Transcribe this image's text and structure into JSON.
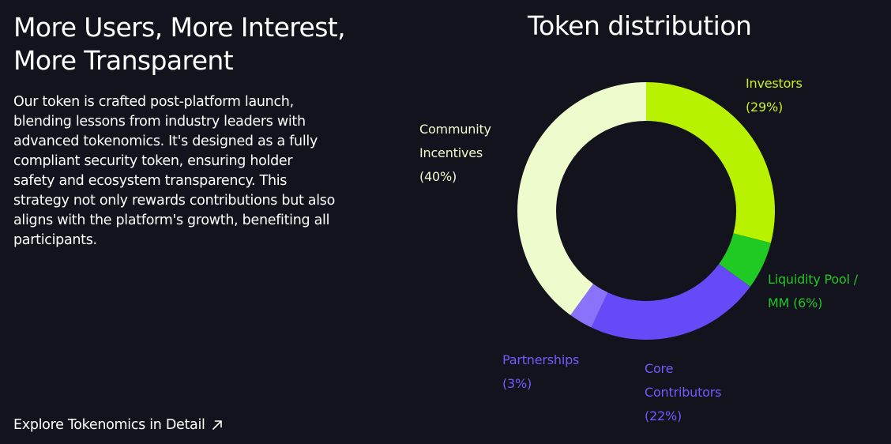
{
  "headline": {
    "line1": "More Users, More Interest,",
    "line2": "More Transparent"
  },
  "description": {
    "lines": [
      "Our token is crafted post-platform launch,",
      "blending lessons from industry leaders with",
      "advanced tokenomics. It's designed as a fully",
      "compliant security token, ensuring holder",
      "safety and ecosystem transparency. This",
      "strategy not only rewards contributions but also",
      "aligns with the platform's growth, benefiting all",
      "participants."
    ]
  },
  "explore_link": {
    "label": "Explore Tokenomics in Detail",
    "icon": "arrow-up-right-icon"
  },
  "chart_data": {
    "type": "pie",
    "title": "Token distribution",
    "donut": true,
    "slices": [
      {
        "key": "investors",
        "label_lines": [
          "Investors",
          "(29%)"
        ],
        "value": 29,
        "color": "#b9f200"
      },
      {
        "key": "liquidity",
        "label_lines": [
          "Liquidity Pool /",
          "MM (6%)"
        ],
        "value": 6,
        "color": "#1fcb22"
      },
      {
        "key": "core",
        "label_lines": [
          "Core",
          "Contributors",
          "(22%)"
        ],
        "value": 22,
        "color": "#664af8"
      },
      {
        "key": "partnerships",
        "label_lines": [
          "Partnerships",
          "(3%)"
        ],
        "value": 3,
        "color": "#8a72fb"
      },
      {
        "key": "community",
        "label_lines": [
          "Community",
          "Incentives",
          "(40%)"
        ],
        "value": 40,
        "color": "#eefccd"
      }
    ]
  },
  "colors": {
    "background": "#13131d",
    "text": "#ffffff",
    "community_label": "#eefccd",
    "investors_label": "#c6f21e",
    "liquidity_label": "#22c525",
    "core_label": "#7459ff",
    "partnerships_label": "#7459ff"
  }
}
